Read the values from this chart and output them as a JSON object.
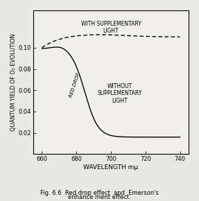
{
  "xlabel": "WAVELENGTH mμ",
  "ylabel": "QUANTUM YIELD OF O₂ EVOLUTION",
  "xlim": [
    655,
    745
  ],
  "ylim": [
    0.0,
    0.135
  ],
  "xticks": [
    660,
    680,
    700,
    720,
    740
  ],
  "yticks": [
    0.02,
    0.04,
    0.06,
    0.08,
    0.1
  ],
  "caption_line1": "Fig. 6.6  Red drop effect  and  Emerson's",
  "caption_line2": "enhance ment effect.",
  "with_light_label": "WITH SUPPLEMENTARY\nLIGHT",
  "without_light_label": "WITHOUT\nSUPPLEMENTARY\nLIGHT",
  "red_drop_label": "RED DROP",
  "bg_color": "#e8e8e4",
  "plot_bg_color": "#f0efeb"
}
